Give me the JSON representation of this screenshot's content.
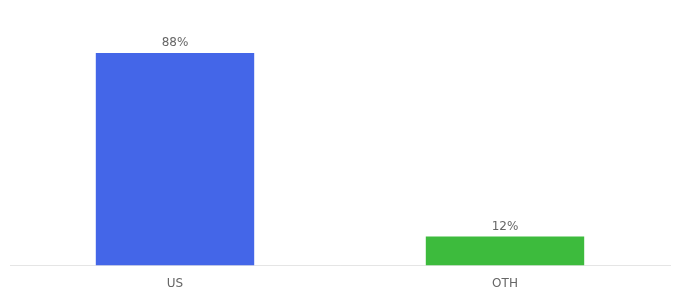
{
  "chart_data": {
    "type": "bar",
    "categories": [
      "US",
      "OTH"
    ],
    "values": [
      88,
      12
    ],
    "value_labels": [
      "88%",
      "12%"
    ],
    "data_labels": true,
    "colors": [
      "#4466e8",
      "#3dbb3d"
    ],
    "ylim": [
      0,
      100
    ],
    "grid": false,
    "tick_labels": "x"
  }
}
